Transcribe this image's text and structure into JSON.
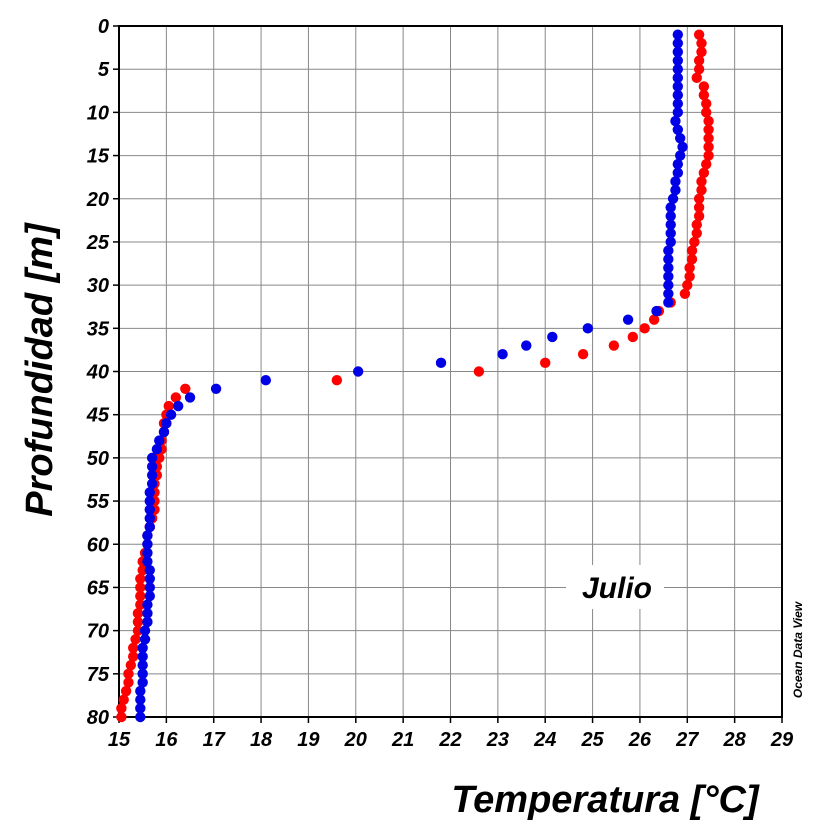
{
  "chart_data": {
    "type": "scatter",
    "title": "",
    "xlabel": "Temperatura [°C]",
    "ylabel": "Profundidad [m]",
    "xlim": [
      15,
      29
    ],
    "ylim": [
      0,
      80
    ],
    "y_inverted": true,
    "x_ticks": [
      15,
      16,
      17,
      18,
      19,
      20,
      21,
      22,
      23,
      24,
      25,
      26,
      27,
      28,
      29
    ],
    "y_ticks": [
      0,
      5,
      10,
      15,
      20,
      25,
      30,
      35,
      40,
      45,
      50,
      55,
      60,
      65,
      70,
      75,
      80
    ],
    "grid": true,
    "annotation": "Julio",
    "credit": "Ocean Data View",
    "series": [
      {
        "color": "#ff0000",
        "points": [
          [
            27.25,
            1
          ],
          [
            27.3,
            2
          ],
          [
            27.3,
            3
          ],
          [
            27.25,
            4
          ],
          [
            27.25,
            5
          ],
          [
            27.2,
            6
          ],
          [
            27.35,
            7
          ],
          [
            27.35,
            8
          ],
          [
            27.4,
            9
          ],
          [
            27.4,
            10
          ],
          [
            27.45,
            11
          ],
          [
            27.45,
            12
          ],
          [
            27.45,
            13
          ],
          [
            27.45,
            14
          ],
          [
            27.45,
            15
          ],
          [
            27.4,
            16
          ],
          [
            27.35,
            17
          ],
          [
            27.3,
            18
          ],
          [
            27.3,
            19
          ],
          [
            27.25,
            20
          ],
          [
            27.25,
            21
          ],
          [
            27.25,
            22
          ],
          [
            27.2,
            23
          ],
          [
            27.2,
            24
          ],
          [
            27.15,
            25
          ],
          [
            27.1,
            26
          ],
          [
            27.1,
            27
          ],
          [
            27.05,
            28
          ],
          [
            27.05,
            29
          ],
          [
            27.0,
            30
          ],
          [
            26.95,
            31
          ],
          [
            26.65,
            32
          ],
          [
            26.4,
            33
          ],
          [
            26.3,
            34
          ],
          [
            26.1,
            35
          ],
          [
            25.85,
            36
          ],
          [
            25.45,
            37
          ],
          [
            24.8,
            38
          ],
          [
            24.0,
            39
          ],
          [
            22.6,
            40
          ],
          [
            19.6,
            41
          ],
          [
            16.4,
            42
          ],
          [
            16.2,
            43
          ],
          [
            16.05,
            44
          ],
          [
            16.0,
            45
          ],
          [
            15.95,
            46
          ],
          [
            15.95,
            47
          ],
          [
            15.9,
            48
          ],
          [
            15.9,
            49
          ],
          [
            15.85,
            50
          ],
          [
            15.8,
            51
          ],
          [
            15.8,
            52
          ],
          [
            15.75,
            53
          ],
          [
            15.75,
            54
          ],
          [
            15.75,
            55
          ],
          [
            15.75,
            56
          ],
          [
            15.7,
            57
          ],
          [
            15.65,
            58
          ],
          [
            15.6,
            59
          ],
          [
            15.6,
            60
          ],
          [
            15.55,
            61
          ],
          [
            15.5,
            62
          ],
          [
            15.5,
            63
          ],
          [
            15.45,
            64
          ],
          [
            15.45,
            65
          ],
          [
            15.45,
            66
          ],
          [
            15.45,
            67
          ],
          [
            15.4,
            68
          ],
          [
            15.4,
            69
          ],
          [
            15.4,
            70
          ],
          [
            15.35,
            71
          ],
          [
            15.3,
            72
          ],
          [
            15.3,
            73
          ],
          [
            15.25,
            74
          ],
          [
            15.2,
            75
          ],
          [
            15.2,
            76
          ],
          [
            15.15,
            77
          ],
          [
            15.1,
            78
          ],
          [
            15.05,
            79
          ],
          [
            15.05,
            80
          ]
        ]
      },
      {
        "color": "#0000e6",
        "points": [
          [
            26.8,
            1
          ],
          [
            26.8,
            2
          ],
          [
            26.8,
            3
          ],
          [
            26.8,
            4
          ],
          [
            26.8,
            5
          ],
          [
            26.8,
            6
          ],
          [
            26.8,
            7
          ],
          [
            26.8,
            8
          ],
          [
            26.8,
            9
          ],
          [
            26.8,
            10
          ],
          [
            26.75,
            11
          ],
          [
            26.8,
            12
          ],
          [
            26.85,
            13
          ],
          [
            26.9,
            14
          ],
          [
            26.85,
            15
          ],
          [
            26.8,
            16
          ],
          [
            26.8,
            17
          ],
          [
            26.75,
            18
          ],
          [
            26.75,
            19
          ],
          [
            26.7,
            20
          ],
          [
            26.65,
            21
          ],
          [
            26.65,
            22
          ],
          [
            26.65,
            23
          ],
          [
            26.65,
            24
          ],
          [
            26.65,
            25
          ],
          [
            26.6,
            26
          ],
          [
            26.6,
            27
          ],
          [
            26.6,
            28
          ],
          [
            26.6,
            29
          ],
          [
            26.6,
            30
          ],
          [
            26.6,
            31
          ],
          [
            26.6,
            32
          ],
          [
            26.35,
            33
          ],
          [
            25.75,
            34
          ],
          [
            24.9,
            35
          ],
          [
            24.15,
            36
          ],
          [
            23.6,
            37
          ],
          [
            23.1,
            38
          ],
          [
            21.8,
            39
          ],
          [
            20.05,
            40
          ],
          [
            18.1,
            41
          ],
          [
            17.05,
            42
          ],
          [
            16.5,
            43
          ],
          [
            16.25,
            44
          ],
          [
            16.1,
            45
          ],
          [
            16.0,
            46
          ],
          [
            15.95,
            47
          ],
          [
            15.85,
            48
          ],
          [
            15.8,
            49
          ],
          [
            15.7,
            50
          ],
          [
            15.7,
            51
          ],
          [
            15.7,
            52
          ],
          [
            15.7,
            53
          ],
          [
            15.65,
            54
          ],
          [
            15.65,
            55
          ],
          [
            15.65,
            56
          ],
          [
            15.65,
            57
          ],
          [
            15.65,
            58
          ],
          [
            15.6,
            59
          ],
          [
            15.6,
            60
          ],
          [
            15.6,
            61
          ],
          [
            15.6,
            62
          ],
          [
            15.65,
            63
          ],
          [
            15.65,
            64
          ],
          [
            15.65,
            65
          ],
          [
            15.65,
            66
          ],
          [
            15.6,
            67
          ],
          [
            15.6,
            68
          ],
          [
            15.6,
            69
          ],
          [
            15.55,
            70
          ],
          [
            15.55,
            71
          ],
          [
            15.5,
            72
          ],
          [
            15.5,
            73
          ],
          [
            15.5,
            74
          ],
          [
            15.5,
            75
          ],
          [
            15.5,
            76
          ],
          [
            15.45,
            77
          ],
          [
            15.45,
            78
          ],
          [
            15.45,
            79
          ],
          [
            15.45,
            80
          ]
        ]
      }
    ]
  }
}
